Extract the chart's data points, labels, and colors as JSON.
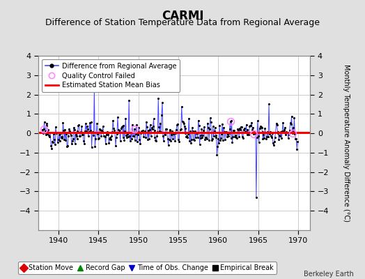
{
  "title": "CARMI",
  "subtitle": "Difference of Station Temperature Data from Regional Average",
  "ylabel_right": "Monthly Temperature Anomaly Difference (°C)",
  "xlim": [
    1937.5,
    1971.5
  ],
  "ylim": [
    -5,
    4
  ],
  "yticks": [
    -4,
    -3,
    -2,
    -1,
    0,
    1,
    2,
    3,
    4
  ],
  "xticks": [
    1940,
    1945,
    1950,
    1955,
    1960,
    1965,
    1970
  ],
  "bias_value": 0.05,
  "line_color": "#4444ff",
  "dot_color": "#000000",
  "bias_color": "#ff0000",
  "qc_color": "#ff88ff",
  "background_color": "#e0e0e0",
  "plot_bg_color": "#ffffff",
  "title_fontsize": 12,
  "subtitle_fontsize": 9,
  "watermark": "Berkeley Earth",
  "legend1_entries": [
    {
      "label": "Difference from Regional Average"
    },
    {
      "label": "Quality Control Failed"
    },
    {
      "label": "Estimated Station Mean Bias"
    }
  ],
  "legend2_entries": [
    {
      "label": "Station Move",
      "color": "#dd0000",
      "marker": "D"
    },
    {
      "label": "Record Gap",
      "color": "#008800",
      "marker": "^"
    },
    {
      "label": "Time of Obs. Change",
      "color": "#0000cc",
      "marker": "v"
    },
    {
      "label": "Empirical Break",
      "color": "#000000",
      "marker": "s"
    }
  ],
  "seed": 42,
  "n_start_year": 1938,
  "n_end_year": 1970,
  "qc_times": [
    1938.17,
    1949.5,
    1961.5,
    1964.42,
    1969.25
  ],
  "spike_times": [
    1944.5,
    1944.55,
    1948.9,
    1952.5,
    1953.0,
    1964.8,
    1966.4
  ],
  "spike_values": [
    2.5,
    2.3,
    1.7,
    1.8,
    1.6,
    -3.3,
    1.5
  ]
}
